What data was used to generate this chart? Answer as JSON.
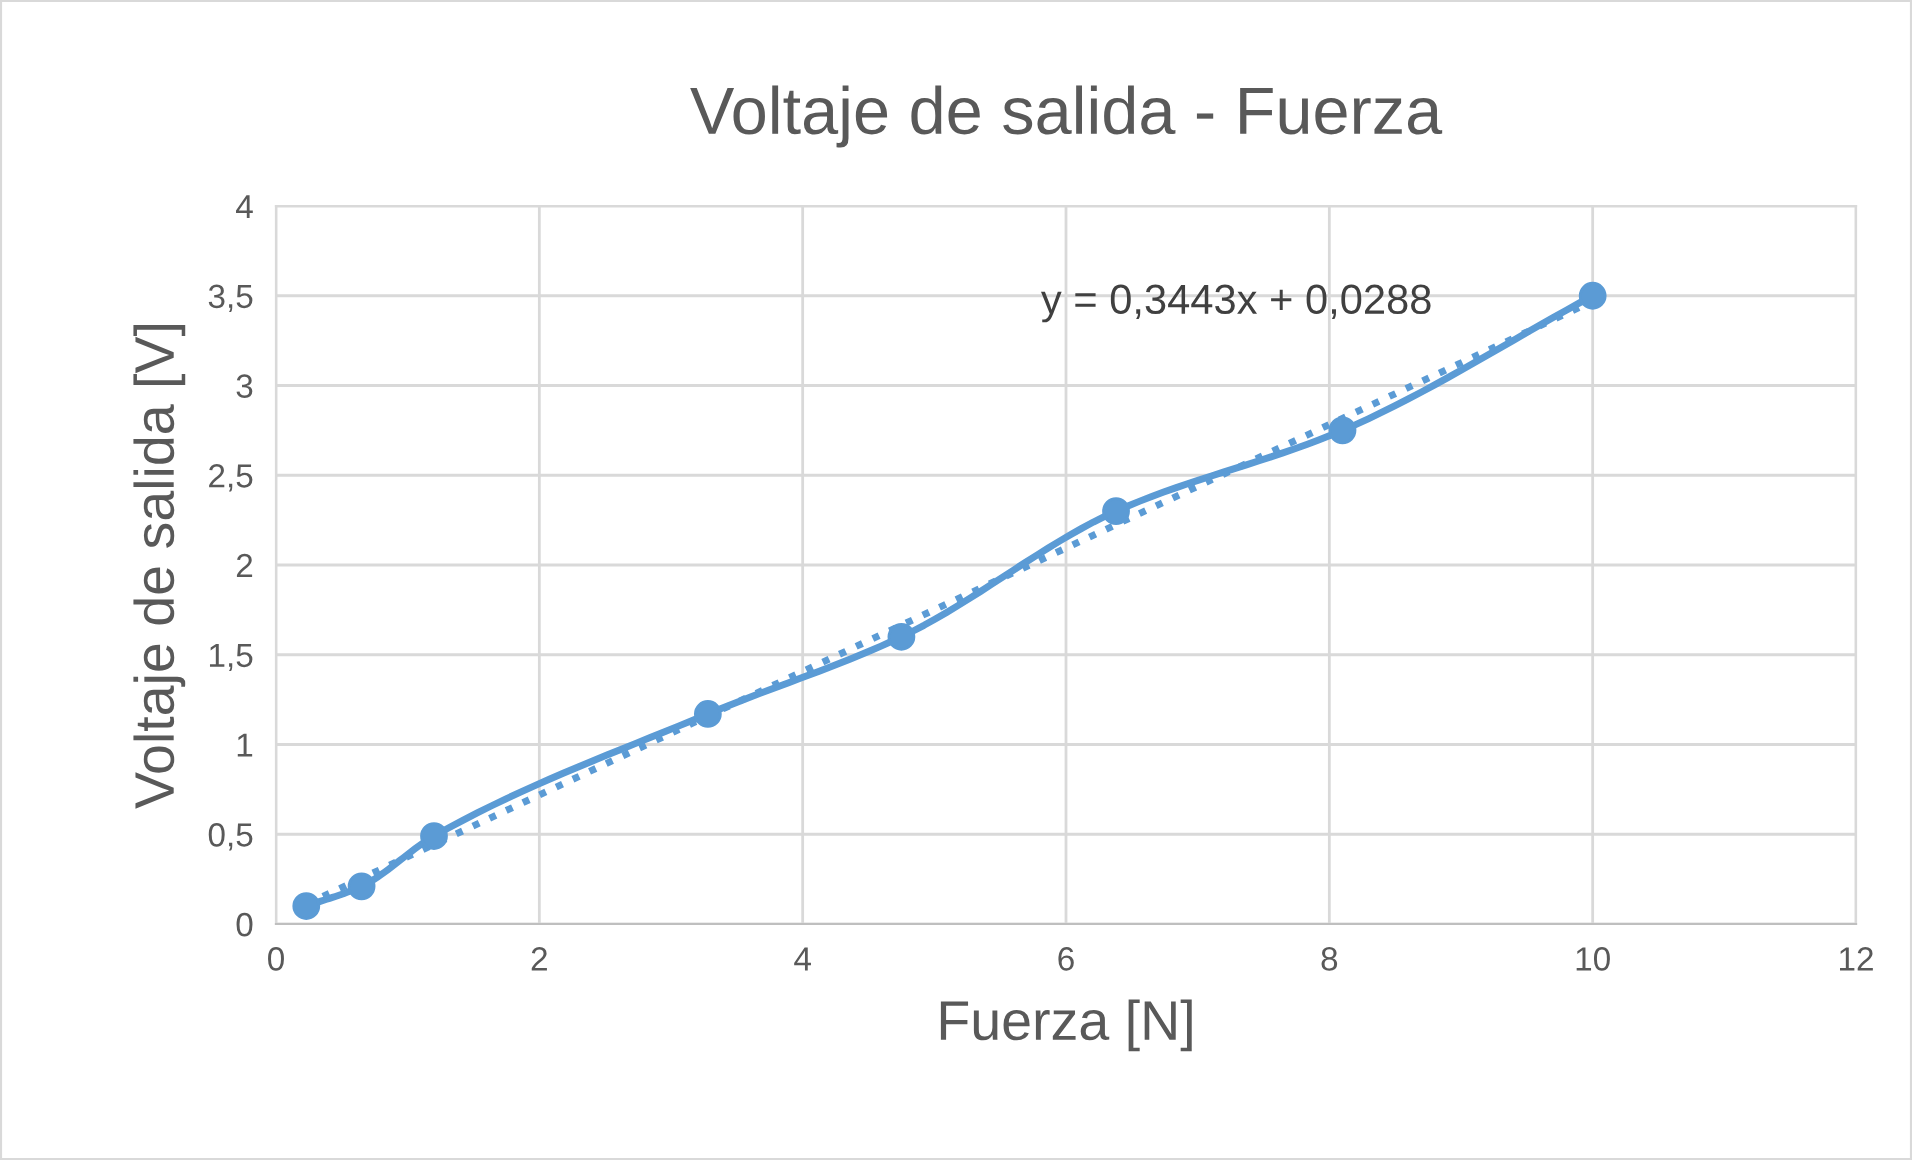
{
  "chart_data": {
    "type": "line",
    "title": "Voltaje de salida - Fuerza",
    "xlabel": "Fuerza [N]",
    "ylabel": "Voltaje de salida [V]",
    "series": [
      {
        "color": "#5b9bd5",
        "marker": "circle",
        "line_style": "solid",
        "x": [
          0.23,
          0.65,
          1.2,
          3.28,
          4.75,
          6.38,
          8.1,
          10.0
        ],
        "values": [
          0.1,
          0.21,
          0.49,
          1.17,
          1.6,
          2.3,
          2.75,
          3.5
        ]
      },
      {
        "color": "#5b9bd5",
        "marker": "none",
        "line_style": "dotted",
        "x": [
          0.23,
          10.0
        ],
        "values": [
          0.11,
          3.47
        ]
      }
    ],
    "annotations": [
      "y = 0,3443x + 0,0288"
    ],
    "xlim": [
      0,
      12
    ],
    "xticks": [
      0,
      2,
      4,
      6,
      8,
      10,
      12
    ],
    "ylim": [
      0,
      4
    ],
    "yticks": [
      0,
      {
        "value": 0.5,
        "label": "0,5"
      },
      1,
      {
        "value": 1.5,
        "label": "1,5"
      },
      2,
      {
        "value": 2.5,
        "label": "2,5"
      },
      3,
      {
        "value": 3.5,
        "label": "3,5"
      },
      4
    ],
    "grid": true,
    "legend": false
  }
}
